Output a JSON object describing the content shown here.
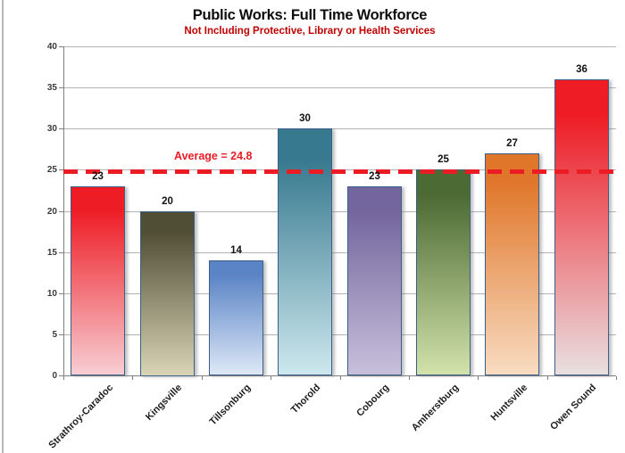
{
  "header": {
    "title": "Public Works: Full Time Workforce",
    "subtitle": "Not Including Protective, Library or Health Services",
    "title_color": "#0d0d0d",
    "subtitle_color": "#c00000"
  },
  "chart_data": {
    "type": "bar",
    "title": "Public Works: Full Time Workforce",
    "subtitle": "Not Including Protective, Library or Health Services",
    "categories": [
      "Strathroy-Caradoc",
      "Kingsville",
      "Tillsonburg",
      "Thorold",
      "Cobourg",
      "Amherstburg",
      "Huntsville",
      "Owen Sound"
    ],
    "values": [
      23,
      20,
      14,
      30,
      23,
      25,
      27,
      36
    ],
    "xlabel": "",
    "ylabel": "",
    "ylim": [
      0,
      40
    ],
    "ytick_step": 5,
    "ytick_labels": [
      "0",
      "5",
      "10",
      "15",
      "20",
      "25",
      "30",
      "35",
      "40"
    ],
    "grid": "horizontal",
    "legend": "none",
    "average": {
      "value": 24.8,
      "label": "Average = 24.8",
      "line_color": "#ec1c24",
      "line_style": "dashed"
    },
    "bar_colors": [
      {
        "top": "#ee1c25",
        "bottom": "#f7ced3"
      },
      {
        "top": "#514e36",
        "bottom": "#d9d4b6"
      },
      {
        "top": "#5b84c6",
        "bottom": "#dde8f6"
      },
      {
        "top": "#37798f",
        "bottom": "#cde8ee"
      },
      {
        "top": "#73659d",
        "bottom": "#c7c0db"
      },
      {
        "top": "#4c6a33",
        "bottom": "#d2e2ab"
      },
      {
        "top": "#e0762a",
        "bottom": "#f8dcc1"
      },
      {
        "top": "#ee1c25",
        "bottom": "#e9e0e1"
      }
    ],
    "bar_border_color": "#3c5f8a",
    "gridline_color": "#b3b3b3",
    "axis_color": "#808080"
  }
}
